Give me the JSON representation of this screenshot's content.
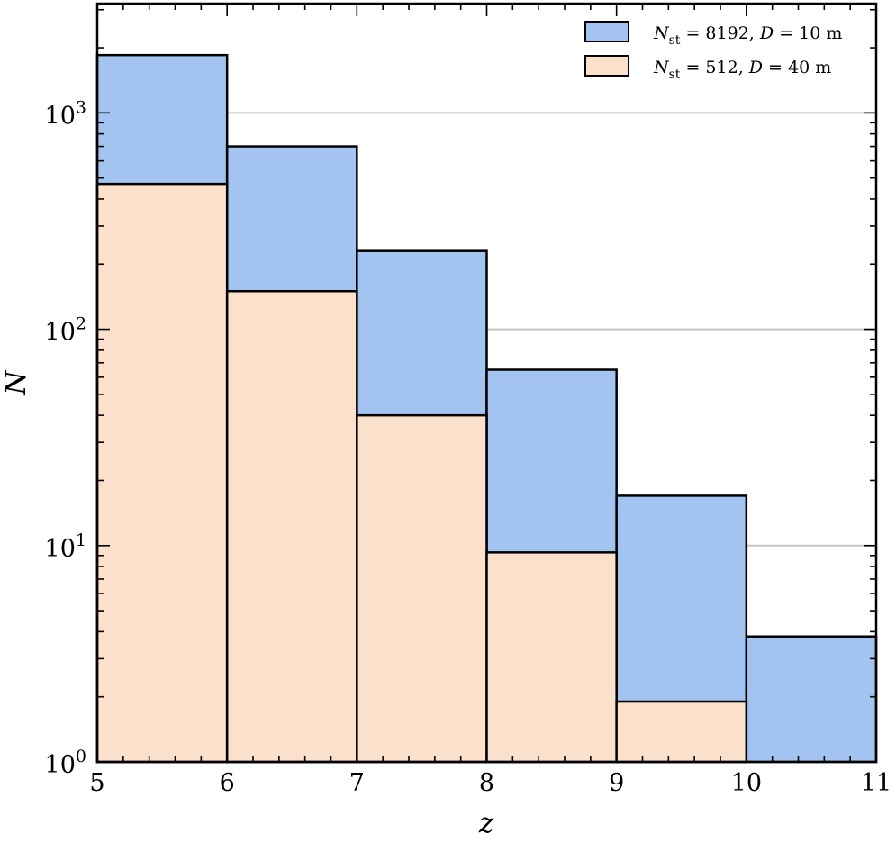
{
  "chart_data": {
    "type": "bar",
    "title": "",
    "xlabel": "z",
    "ylabel": "N",
    "x_scale": "linear",
    "y_scale": "log",
    "xlim": [
      5,
      11
    ],
    "ylim": [
      1,
      3200
    ],
    "x_ticks": [
      "5",
      "6",
      "7",
      "8",
      "9",
      "10",
      "11"
    ],
    "y_ticks": [
      {
        "value": 1,
        "base": "10",
        "exp": "0"
      },
      {
        "value": 10,
        "base": "10",
        "exp": "1"
      },
      {
        "value": 100,
        "base": "10",
        "exp": "2"
      },
      {
        "value": 1000,
        "base": "10",
        "exp": "3"
      }
    ],
    "grid": "horizontal-at-decades",
    "legend_position": "top-right",
    "bins": [
      [
        5,
        6
      ],
      [
        6,
        7
      ],
      [
        7,
        8
      ],
      [
        8,
        9
      ],
      [
        9,
        10
      ],
      [
        10,
        11
      ]
    ],
    "series": [
      {
        "name": "N_st = 8192, D = 10 m",
        "legend": {
          "var1": "N",
          "sub1": "st",
          "mid": " = 8192, ",
          "var2": "D",
          "tail": " = 10 m"
        },
        "color": "#a3c4f0",
        "values": [
          1850,
          700,
          230,
          65,
          17,
          3.8
        ]
      },
      {
        "name": "N_st = 512, D = 40 m",
        "legend": {
          "var1": "N",
          "sub1": "st",
          "mid": " = 512, ",
          "var2": "D",
          "tail": " = 40 m"
        },
        "color": "#fbe1cb",
        "values": [
          470,
          150,
          40,
          9.3,
          1.9,
          0
        ]
      }
    ]
  }
}
